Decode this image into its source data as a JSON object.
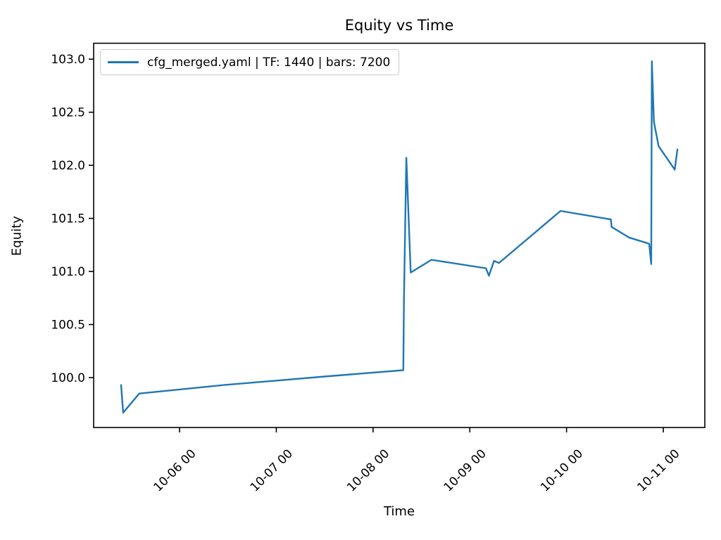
{
  "title": "Equity vs Time",
  "axes": {
    "xlabel": "Time",
    "ylabel": "Equity"
  },
  "legend": {
    "label": "cfg_merged.yaml | TF: 1440 | bars: 7200"
  },
  "colors": {
    "line": "#1f77b4",
    "axis": "#000000",
    "tick_text": "#000000",
    "legend_border": "#cccccc",
    "background": "#ffffff"
  },
  "chart_data": {
    "type": "line",
    "title": "Equity vs Time",
    "xlabel": "Time",
    "ylabel": "Equity",
    "grid": false,
    "legend_position": "upper left",
    "legend_entries": [
      "cfg_merged.yaml | TF: 1440 | bars: 7200"
    ],
    "x_ticks": [
      {
        "day_offset": 1,
        "label": "10-06 00"
      },
      {
        "day_offset": 2,
        "label": "10-07 00"
      },
      {
        "day_offset": 3,
        "label": "10-08 00"
      },
      {
        "day_offset": 4,
        "label": "10-09 00"
      },
      {
        "day_offset": 5,
        "label": "10-10 00"
      },
      {
        "day_offset": 6,
        "label": "10-11 00"
      }
    ],
    "y_ticks": [
      100.0,
      100.5,
      101.0,
      101.5,
      102.0,
      102.5,
      103.0
    ],
    "xlim_days_from_10_05": [
      0.112,
      6.429
    ],
    "ylim": [
      99.53,
      103.15
    ],
    "series": [
      {
        "name": "cfg_merged.yaml | TF: 1440 | bars: 7200",
        "points": [
          [
            "10-05 09:30",
            99.93
          ],
          [
            "10-05 10:00",
            99.67
          ],
          [
            "10-05 14:00",
            99.85
          ],
          [
            "10-06 11:00",
            99.93
          ],
          [
            "10-07 12:00",
            100.01
          ],
          [
            "10-08 07:30",
            100.07
          ],
          [
            "10-08 07:40",
            100.73
          ],
          [
            "10-08 08:15",
            102.07
          ],
          [
            "10-08 09:20",
            100.99
          ],
          [
            "10-08 14:30",
            101.11
          ],
          [
            "10-09 04:00",
            101.03
          ],
          [
            "10-09 04:45",
            100.96
          ],
          [
            "10-09 06:00",
            101.1
          ],
          [
            "10-09 07:15",
            101.08
          ],
          [
            "10-09 22:30",
            101.57
          ],
          [
            "10-10 11:00",
            101.49
          ],
          [
            "10-10 11:10",
            101.42
          ],
          [
            "10-10 15:30",
            101.32
          ],
          [
            "10-10 19:45",
            101.27
          ],
          [
            "10-10 20:30",
            101.26
          ],
          [
            "10-10 21:00",
            101.07
          ],
          [
            "10-10 21:10",
            102.98
          ],
          [
            "10-10 21:40",
            102.41
          ],
          [
            "10-10 22:50",
            102.18
          ],
          [
            "10-11 02:50",
            101.96
          ],
          [
            "10-11 03:30",
            102.15
          ]
        ]
      }
    ]
  }
}
